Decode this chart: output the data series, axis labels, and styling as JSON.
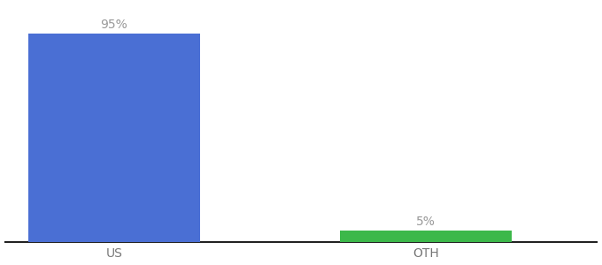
{
  "categories": [
    "US",
    "OTH"
  ],
  "values": [
    95,
    5
  ],
  "bar_colors": [
    "#4A6FD4",
    "#3cb84a"
  ],
  "label_texts": [
    "95%",
    "5%"
  ],
  "background_color": "#ffffff",
  "ylim": [
    0,
    108
  ],
  "bar_width": 0.55,
  "label_fontsize": 10,
  "tick_fontsize": 10,
  "tick_color": "#777777",
  "label_color": "#999999",
  "spine_color": "#222222",
  "xlim": [
    -0.35,
    1.55
  ]
}
